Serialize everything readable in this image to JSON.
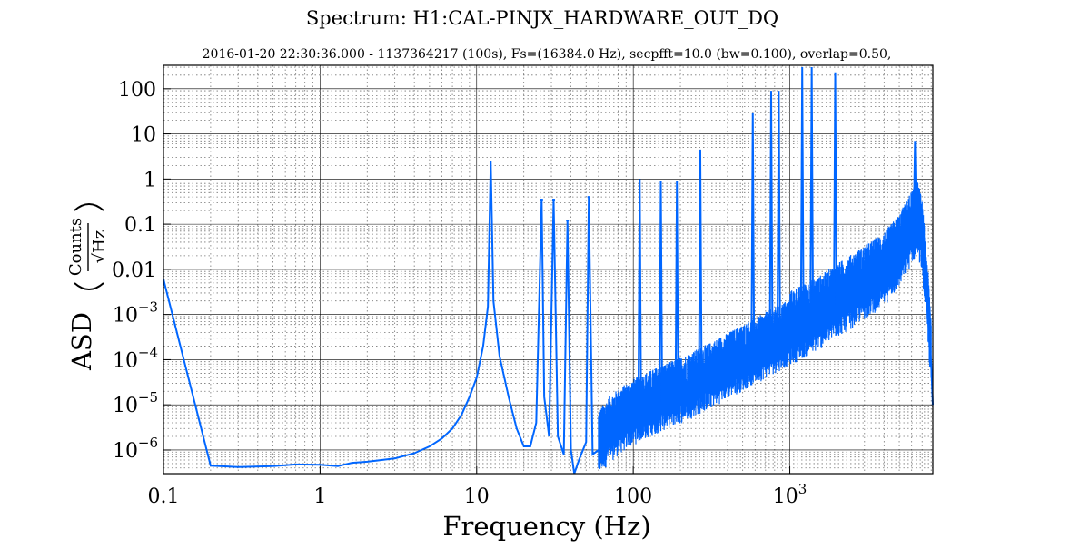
{
  "chart_data": {
    "type": "line",
    "title": "Spectrum: H1:CAL-PINJX_HARDWARE_OUT_DQ",
    "subtitle": "2016-01-20 22:30:36.000 - 1137364217 (100s), Fs=(16384.0 Hz), secpfft=10.0 (bw=0.100), overlap=0.50,",
    "xlabel": "Frequency (Hz)",
    "ylabel": {
      "prefix": "ASD",
      "numerator": "Counts",
      "denominator": "√Hz"
    },
    "x_scale": "log",
    "y_scale": "log",
    "xlim": [
      0.1,
      8192
    ],
    "ylim": [
      3e-07,
      330
    ],
    "grid": true,
    "x_ticks": [
      {
        "value": 0.1,
        "label": "0.1"
      },
      {
        "value": 1,
        "label": "1"
      },
      {
        "value": 10,
        "label": "10"
      },
      {
        "value": 100,
        "label": "100"
      },
      {
        "value": 1000,
        "label": "10",
        "exp": "3"
      }
    ],
    "y_ticks": [
      {
        "value": 1e-06,
        "label": "10",
        "exp": "−6"
      },
      {
        "value": 1e-05,
        "label": "10",
        "exp": "−5"
      },
      {
        "value": 0.0001,
        "label": "10",
        "exp": "−4"
      },
      {
        "value": 0.001,
        "label": "10",
        "exp": "−3"
      },
      {
        "value": 0.01,
        "label": "0.01"
      },
      {
        "value": 0.1,
        "label": "0.1"
      },
      {
        "value": 1,
        "label": "1"
      },
      {
        "value": 10,
        "label": "10"
      },
      {
        "value": 100,
        "label": "100"
      }
    ],
    "color": "#0066ff",
    "series": [
      {
        "baseline": [
          [
            0.1,
            0.006
          ],
          [
            0.2,
            4.5e-07
          ],
          [
            0.3,
            4.2e-07
          ],
          [
            0.5,
            4.4e-07
          ],
          [
            0.7,
            4.8e-07
          ],
          [
            1.0,
            4.7e-07
          ],
          [
            1.3,
            4.4e-07
          ],
          [
            1.6,
            5.2e-07
          ],
          [
            2.0,
            5.5e-07
          ],
          [
            3.0,
            6.5e-07
          ],
          [
            4.0,
            8.5e-07
          ],
          [
            5.0,
            1.2e-06
          ],
          [
            6.0,
            1.8e-06
          ],
          [
            7.0,
            3e-06
          ],
          [
            8.0,
            6e-06
          ],
          [
            9.0,
            1.5e-05
          ],
          [
            10.0,
            4e-05
          ],
          [
            11.0,
            0.0002
          ],
          [
            11.8,
            0.0015
          ],
          [
            12.3,
            2.5
          ],
          [
            12.8,
            0.002
          ],
          [
            14.0,
            0.00012
          ],
          [
            16.0,
            1.5e-05
          ],
          [
            18.0,
            3e-06
          ],
          [
            20.0,
            1.2e-06
          ],
          [
            22.0,
            1.2e-06
          ],
          [
            24.0,
            4e-06
          ],
          [
            26.0,
            0.35
          ],
          [
            27.0,
            1.5e-05
          ],
          [
            29.0,
            2e-06
          ],
          [
            31.0,
            0.35
          ],
          [
            33.0,
            2e-06
          ],
          [
            36.0,
            8e-07
          ],
          [
            38.0,
            0.12
          ],
          [
            40.0,
            1e-06
          ],
          [
            42.0,
            3e-07
          ],
          [
            45.0,
            6e-07
          ],
          [
            50.0,
            1.5e-06
          ],
          [
            52.0,
            0.4
          ],
          [
            55.0,
            8e-07
          ],
          [
            60.0,
            1e-06
          ],
          [
            70.0,
            2e-06
          ],
          [
            80.0,
            3e-06
          ],
          [
            100.0,
            5e-06
          ],
          [
            150.0,
            1e-05
          ],
          [
            200.0,
            1.5e-05
          ],
          [
            300.0,
            3e-05
          ],
          [
            500.0,
            8e-05
          ],
          [
            700.0,
            0.00015
          ],
          [
            1000.0,
            0.0003
          ],
          [
            1500.0,
            0.0006
          ],
          [
            2000.0,
            0.0012
          ],
          [
            3000.0,
            0.003
          ],
          [
            4000.0,
            0.006
          ],
          [
            5000.0,
            0.015
          ],
          [
            6000.0,
            0.05
          ],
          [
            6600.0,
            0.08
          ],
          [
            7000.0,
            0.03
          ],
          [
            7500.0,
            0.002
          ],
          [
            8000.0,
            8e-05
          ],
          [
            8192.0,
            1e-05
          ]
        ],
        "lines": [
          {
            "f": 26,
            "amp": 0.35
          },
          {
            "f": 31,
            "amp": 0.35
          },
          {
            "f": 38,
            "amp": 0.12
          },
          {
            "f": 52,
            "amp": 0.4
          },
          {
            "f": 110,
            "amp": 1.0
          },
          {
            "f": 150,
            "amp": 0.9
          },
          {
            "f": 190,
            "amp": 0.9
          },
          {
            "f": 268,
            "amp": 4.5
          },
          {
            "f": 580,
            "amp": 30
          },
          {
            "f": 760,
            "amp": 90
          },
          {
            "f": 850,
            "amp": 90
          },
          {
            "f": 1200,
            "amp": 300
          },
          {
            "f": 1380,
            "amp": 300
          },
          {
            "f": 1950,
            "amp": 230
          },
          {
            "f": 6300,
            "amp": 7
          }
        ]
      }
    ]
  }
}
